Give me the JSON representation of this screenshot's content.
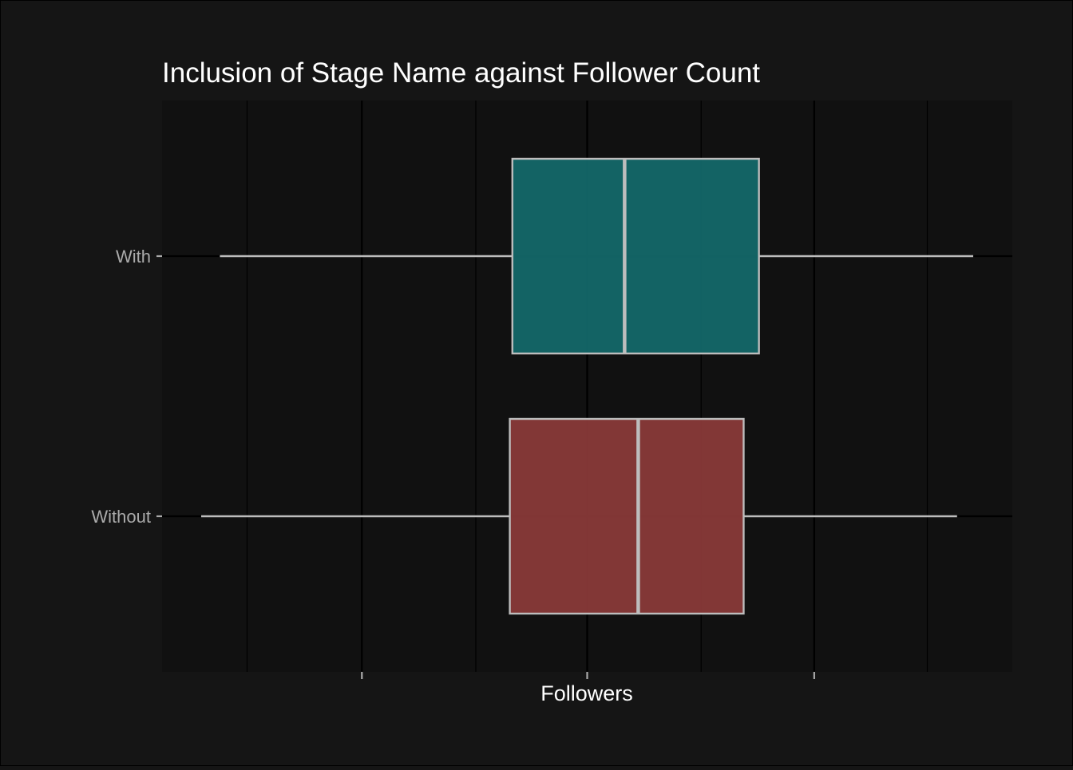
{
  "chart_data": {
    "type": "boxplot",
    "orientation": "horizontal",
    "title": "Inclusion of Stage Name against Follower Count",
    "xlabel": "Followers",
    "ylabel": "",
    "xlim": [
      0,
      1000
    ],
    "x_major_ticks": [
      235,
      500,
      767
    ],
    "x_minor_gridlines": [
      100,
      369,
      634,
      900
    ],
    "x_tick_labels": [
      "",
      "",
      ""
    ],
    "grid": true,
    "legend": "none",
    "categories": [
      "With",
      "Without"
    ],
    "series": [
      {
        "category": "With",
        "whisker_low": 68,
        "q1": 412,
        "median": 544,
        "q3": 702,
        "whisker_high": 954,
        "fill": "#146a6b"
      },
      {
        "category": "Without",
        "whisker_low": 46,
        "q1": 409,
        "median": 560,
        "q3": 684,
        "whisker_high": 935,
        "fill": "#8c3b3a"
      }
    ],
    "colors": {
      "background": "#151515",
      "panel": "#111111",
      "gridline": "#000000",
      "box_outline": "#bdbdbd",
      "title_text": "#ffffff",
      "axis_text": "#aaaaaa"
    }
  }
}
